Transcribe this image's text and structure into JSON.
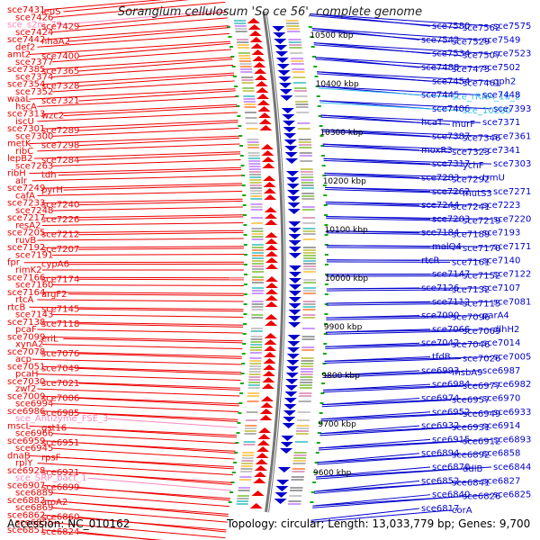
{
  "header": {
    "title": "Sorangium cellulosum 'So ce 56', complete genome"
  },
  "footer": {
    "accession": "Accession: NC_010162",
    "topology": "Topology: circular; Length: 13,033,779 bp; Genes: 9,700"
  },
  "colors": {
    "left_gene": "#ee0000",
    "right_gene": "#0000cc",
    "rna": "#ff88bb",
    "rna_right": "#33bbee",
    "backbone": "#777777",
    "tick": "#11aa11"
  },
  "scale_labels": [
    "10500 kbp",
    "10400 kbp",
    "10300 kbp",
    "10200 kbp",
    "10100 kbp",
    "10000 kbp",
    "9900 kbp",
    "9800 kbp",
    "9700 kbp",
    "9600 kbp"
  ],
  "left_labels": [
    "sce7431",
    "leuS",
    "sce7426",
    "sce_s2m_79",
    "sce7429",
    "sce7424",
    "sce7442",
    "nhaA2",
    "def2",
    "amt2",
    "sce7400",
    "sce7377",
    "sce7385",
    "sce7365",
    "sce7374",
    "sce7354",
    "sce7328",
    "sce7352",
    "waaL",
    "sce7321",
    "hscA",
    "sce7313",
    "wzc2",
    "iscU",
    "sce7301",
    "sce7289",
    "sce7300",
    "metK",
    "sce7298",
    "ribC",
    "lepB2",
    "sce7284",
    "sce7263",
    "ribH",
    "tdh",
    "alr",
    "sce7249",
    "pyrH",
    "cafA",
    "sce7233",
    "sce7240",
    "sce7248",
    "sce7217",
    "sce7226",
    "resA2",
    "sce7205",
    "sce7212",
    "ruvB",
    "sce7192",
    "sce7207",
    "sce7191",
    "fpr",
    "cypA6",
    "rimK2",
    "sce7166",
    "sce7174",
    "sce7160",
    "sce7164",
    "argF2",
    "rtcA",
    "rtcB",
    "sce7145",
    "sce7143",
    "sce7138",
    "sce7118",
    "pcaF",
    "sce7099",
    "eriL",
    "xynA2",
    "sce7078",
    "sce7076",
    "acp",
    "sce7051",
    "sce7049",
    "pcaH",
    "sce7030",
    "sce7021",
    "zwf2",
    "sce7009",
    "sce7006",
    "sce6994",
    "sce6986",
    "sce6985",
    "sce_Antizyme_FSE_3",
    "mscL",
    "gst16",
    "sce6966",
    "sce6959",
    "sce6951",
    "sce6945",
    "dnaB",
    "rpsF",
    "rplY",
    "sce6928",
    "sce6921",
    "sce_SRP_bact_1",
    "sce6907",
    "sce6899",
    "sce6889",
    "sce6882",
    "aroA2",
    "sce6869",
    "sce6862",
    "sce6860",
    "sce6855",
    "sce6851",
    "sce6824"
  ],
  "right_labels": [
    "sce7580",
    "sce7562",
    "sce7575",
    "sce7542",
    "sce7529",
    "sce7549",
    "sce7534",
    "sce7507",
    "sce7523",
    "sce7488",
    "sce7475",
    "sce7502",
    "sce7454",
    "sce7461",
    "gph2",
    "sce7445",
    "sce_rRNA_16_2",
    "sce7448",
    "sce7406",
    "sce_10280",
    "sce7393",
    "hcaT",
    "murF",
    "sce7371",
    "sce7387",
    "sce7346",
    "sce7361",
    "moxR3",
    "sce7323",
    "sce7341",
    "sce7317",
    "ychF",
    "sce7303",
    "sce7283",
    "sce7292",
    "trmU",
    "sce7262",
    "mutS3",
    "sce7271",
    "sce7244",
    "sce7241",
    "sce7223",
    "sce7203",
    "sce7219",
    "sce7220",
    "sce7184",
    "sce7189",
    "sce7193",
    "malQ4",
    "sce7170",
    "sce7171",
    "rtcR",
    "sce7161",
    "sce7140",
    "sce7147",
    "sce7152",
    "sce7122",
    "sce7126",
    "sce7132",
    "sce7107",
    "sce7112",
    "sce7115",
    "sce7081",
    "sce7090",
    "sce7096",
    "parA4",
    "sce7066",
    "sce7069",
    "dlhH2",
    "sce7042",
    "sce7046",
    "sce7014",
    "tfdB",
    "sce7026",
    "sce7005",
    "sce6993",
    "msbA9",
    "sce6987",
    "sce6984",
    "sce6977",
    "sce6982",
    "sce6974",
    "sce6957",
    "sce6970",
    "sce6952",
    "sce6949",
    "sce6933",
    "sce6932",
    "sce6931",
    "sce6914",
    "sce6915",
    "sce6912",
    "sce6893",
    "sce6894",
    "sce6892",
    "sce6858",
    "sce6870",
    "ddlB",
    "sce6844",
    "sce6852",
    "sce6841",
    "sce6827",
    "sce6840",
    "sce6826",
    "sce6825",
    "sce6817",
    "corA"
  ],
  "left_rna_labels": [
    "sce_s2m_79",
    "sce_Antizyme_FSE_3",
    "sce_SRP_bact_1"
  ],
  "right_rna_labels": [
    "sce_rRNA_16_2",
    "sce_10280"
  ]
}
